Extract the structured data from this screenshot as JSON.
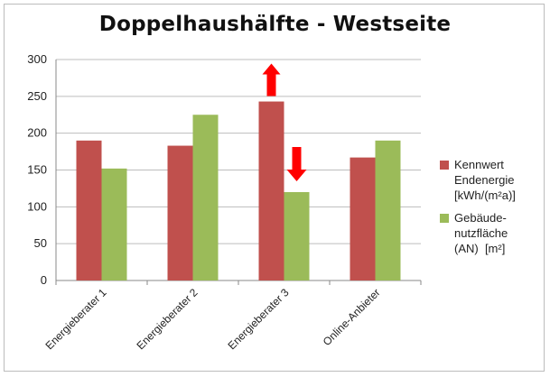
{
  "chart_data": {
    "type": "bar",
    "title": "Doppelhaushälfte - Westseite",
    "categories": [
      "Energieberater 1",
      "Energieberater 2",
      "Energieberater 3",
      "Online-Anbieter"
    ],
    "series": [
      {
        "name": "Kennwert\nEndenergie\n[kWh/(m²a)]",
        "color": "#c0504d",
        "values": [
          190,
          183,
          243,
          167
        ]
      },
      {
        "name": "Gebäude-\nnutzfläche\n(AN)  [m²]",
        "color": "#9bbb59",
        "values": [
          152,
          225,
          120,
          190
        ]
      }
    ],
    "ylim": [
      0,
      300
    ],
    "yticks": [
      0,
      50,
      100,
      150,
      200,
      250,
      300
    ],
    "grid": true,
    "legend_position": "right",
    "annotations": [
      {
        "type": "arrow-up",
        "color": "#ff0000",
        "category": "Energieberater 3",
        "series": 0
      },
      {
        "type": "arrow-down",
        "color": "#ff0000",
        "category": "Energieberater 3",
        "series": 1
      }
    ]
  }
}
